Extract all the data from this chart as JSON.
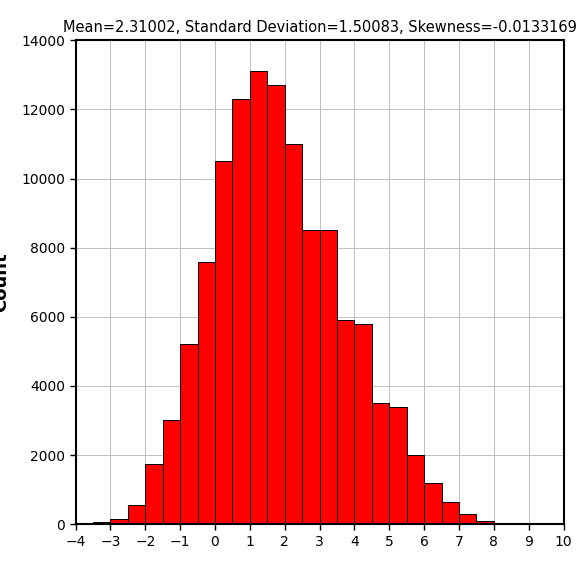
{
  "title": "Mean=2.31002, Standard Deviation=1.50083, Skewness=-0.0133169",
  "ylabel": "Count",
  "xlabel": "",
  "xlim": [
    -4,
    10
  ],
  "ylim": [
    0,
    14000
  ],
  "yticks": [
    0,
    2000,
    4000,
    6000,
    8000,
    10000,
    12000,
    14000
  ],
  "xticks": [
    -4,
    -3,
    -2,
    -1,
    0,
    1,
    2,
    3,
    4,
    5,
    6,
    7,
    8,
    9,
    10
  ],
  "bar_color": "#FF0000",
  "bar_edge_color": "#000000",
  "bin_width": 0.5,
  "bins_left_edges": [
    -4.0,
    -3.5,
    -3.0,
    -2.5,
    -2.0,
    -1.5,
    -1.0,
    -0.5,
    0.0,
    0.5,
    1.0,
    1.5,
    2.0,
    2.5,
    3.0,
    3.5,
    4.0,
    4.5,
    5.0,
    5.5,
    6.0,
    6.5,
    7.0,
    7.5,
    8.0,
    8.5,
    9.0,
    9.5
  ],
  "bar_heights": [
    10,
    50,
    150,
    550,
    1750,
    3000,
    5200,
    7600,
    10500,
    12300,
    13100,
    12700,
    11000,
    8500,
    8500,
    5900,
    5800,
    3500,
    3400,
    2000,
    1200,
    650,
    300,
    100,
    30,
    5,
    2,
    0
  ]
}
